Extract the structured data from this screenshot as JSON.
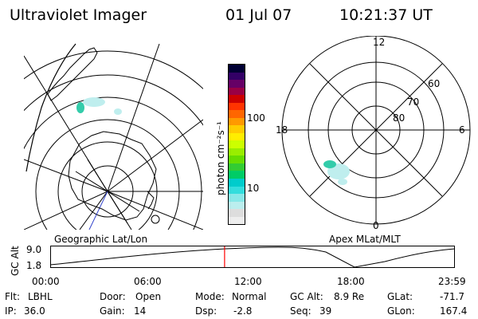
{
  "header": {
    "instrument": "Ultraviolet Imager",
    "date": "01 Jul 07",
    "time": "10:21:37 UT"
  },
  "colorbar": {
    "label": "photon cm⁻²s⁻¹",
    "ticks": [
      "100",
      "10"
    ],
    "colors": [
      "#000033",
      "#330066",
      "#660066",
      "#990044",
      "#cc0000",
      "#ff3300",
      "#ff6600",
      "#ff9900",
      "#ffcc00",
      "#ffee00",
      "#ccff00",
      "#99ee00",
      "#66dd00",
      "#33cc33",
      "#00cc66",
      "#00cccc",
      "#33dddd",
      "#88e8e8",
      "#bbeeee",
      "#dddddd",
      "#eeeeee"
    ]
  },
  "panels": {
    "left_label": "Geographic Lat/Lon",
    "right_label": "Apex MLat/MLT",
    "mlt_labels": {
      "top": "12",
      "left": "18",
      "right": "6",
      "bottom": "0"
    },
    "mlat_labels": [
      "60",
      "70",
      "80"
    ]
  },
  "timeline": {
    "axis_title": "GC Alt",
    "y_labels": [
      "9.0",
      "1.8"
    ],
    "x_labels": [
      "00:00",
      "06:00",
      "12:00",
      "18:00",
      "23:59"
    ],
    "current_time_fraction": 0.431
  },
  "info": {
    "flt_label": "Flt:",
    "flt_value": "LBHL",
    "ip_label": "IP:",
    "ip_value": "36.0",
    "door_label": "Door:",
    "door_value": "Open",
    "gain_label": "Gain:",
    "gain_value": "14",
    "mode_label": "Mode:",
    "mode_value": "Normal",
    "dsp_label": "Dsp:",
    "dsp_value": "-2.8",
    "gcalt_label": "GC Alt:",
    "gcalt_value": "8.9 Re",
    "seq_label": "Seq:",
    "seq_value": "39",
    "glat_label": "GLat:",
    "glat_value": "-71.7",
    "glon_label": "GLon:",
    "glon_value": "167.4"
  },
  "colors": {
    "marker": "#ff0000",
    "aurora_main": "#33ccaa",
    "aurora_faint": "#bfeeee"
  }
}
